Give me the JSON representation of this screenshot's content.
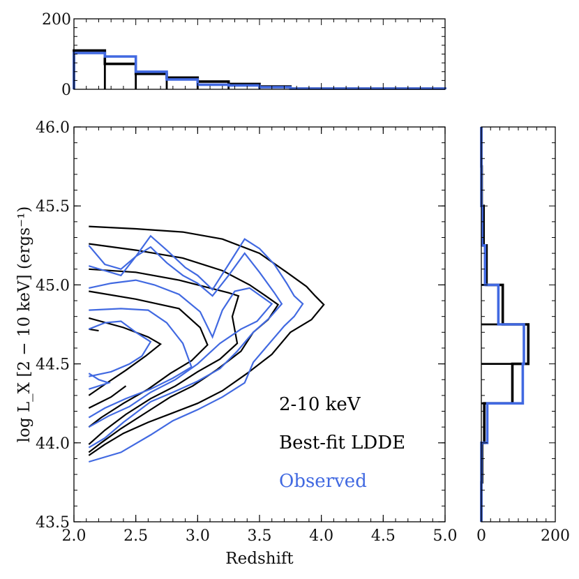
{
  "colors": {
    "model": "#000000",
    "observed": "#4169e1"
  },
  "chart_data": [
    {
      "panel": "main",
      "type": "contour",
      "xlabel": "Redshift",
      "ylabel": "log L_X [2 − 10 keV] (ergs⁻¹)",
      "xlim": [
        2.0,
        5.0
      ],
      "ylim": [
        43.5,
        46.0
      ],
      "xticks": [
        "2.0",
        "2.5",
        "3.0",
        "3.5",
        "4.0",
        "4.5",
        "5.0"
      ],
      "yticks": [
        "43.5",
        "44.0",
        "44.5",
        "45.0",
        "45.5",
        "46.0"
      ],
      "legend": {
        "placement": "lower-right",
        "entries": [
          "2-10 keV",
          "Best-fit LDDE",
          "Observed"
        ]
      },
      "series": [
        {
          "name": "Best-fit LDDE",
          "color": "#000000",
          "contours": [
            [
              [
                2.12,
                45.37
              ],
              [
                2.5,
                45.355
              ],
              [
                2.88,
                45.335
              ],
              [
                3.2,
                45.29
              ],
              [
                3.5,
                45.2
              ],
              [
                3.72,
                45.08
              ],
              [
                3.88,
                44.99
              ],
              [
                3.95,
                44.93
              ],
              [
                4.02,
                44.875
              ],
              [
                3.92,
                44.78
              ],
              [
                3.75,
                44.7
              ],
              [
                3.6,
                44.56
              ],
              [
                3.4,
                44.44
              ],
              [
                3.2,
                44.33
              ],
              [
                3.0,
                44.25
              ],
              [
                2.8,
                44.19
              ],
              [
                2.6,
                44.13
              ],
              [
                2.4,
                44.06
              ],
              [
                2.25,
                43.99
              ],
              [
                2.12,
                43.92
              ]
            ],
            [
              [
                2.12,
                45.26
              ],
              [
                2.5,
                45.22
              ],
              [
                2.88,
                45.17
              ],
              [
                3.2,
                45.09
              ],
              [
                3.42,
                45.0
              ],
              [
                3.55,
                44.93
              ],
              [
                3.65,
                44.875
              ],
              [
                3.57,
                44.78
              ],
              [
                3.45,
                44.7
              ],
              [
                3.35,
                44.58
              ],
              [
                3.15,
                44.46
              ],
              [
                2.96,
                44.36
              ],
              [
                2.78,
                44.29
              ],
              [
                2.6,
                44.2
              ],
              [
                2.38,
                44.09
              ],
              [
                2.22,
                44.0
              ],
              [
                2.12,
                43.94
              ]
            ],
            [
              [
                2.12,
                45.1
              ],
              [
                2.5,
                45.08
              ],
              [
                2.85,
                45.03
              ],
              [
                3.1,
                44.98
              ],
              [
                3.25,
                44.95
              ],
              [
                3.33,
                44.93
              ],
              [
                3.28,
                44.8
              ],
              [
                3.32,
                44.63
              ],
              [
                3.18,
                44.53
              ],
              [
                3.0,
                44.45
              ],
              [
                2.82,
                44.36
              ],
              [
                2.62,
                44.28
              ],
              [
                2.42,
                44.18
              ],
              [
                2.25,
                44.08
              ],
              [
                2.12,
                43.99
              ]
            ],
            [
              [
                2.12,
                44.96
              ],
              [
                2.5,
                44.91
              ],
              [
                2.85,
                44.85
              ],
              [
                3.02,
                44.73
              ],
              [
                3.08,
                44.62
              ],
              [
                2.95,
                44.52
              ],
              [
                2.78,
                44.44
              ],
              [
                2.6,
                44.34
              ],
              [
                2.4,
                44.25
              ],
              [
                2.22,
                44.16
              ],
              [
                2.12,
                44.1
              ]
            ],
            [
              [
                2.12,
                44.79
              ],
              [
                2.4,
                44.73
              ],
              [
                2.6,
                44.67
              ],
              [
                2.7,
                44.625
              ],
              [
                2.58,
                44.55
              ],
              [
                2.42,
                44.46
              ],
              [
                2.25,
                44.37
              ],
              [
                2.12,
                44.3
              ]
            ],
            [
              [
                2.12,
                44.72
              ],
              [
                2.2,
                44.71
              ]
            ],
            [
              [
                2.12,
                44.22
              ],
              [
                2.3,
                44.29
              ],
              [
                2.42,
                44.36
              ]
            ]
          ]
        },
        {
          "name": "Observed",
          "color": "#4169e1",
          "contours": [
            [
              [
                2.12,
                45.25
              ],
              [
                2.25,
                45.13
              ],
              [
                2.38,
                45.1
              ],
              [
                2.5,
                45.18
              ],
              [
                2.62,
                45.31
              ],
              [
                2.75,
                45.22
              ],
              [
                2.9,
                45.11
              ],
              [
                3.0,
                45.06
              ],
              [
                3.12,
                44.97
              ],
              [
                3.25,
                45.13
              ],
              [
                3.38,
                45.29
              ],
              [
                3.5,
                45.23
              ],
              [
                3.62,
                45.13
              ],
              [
                3.72,
                45.01
              ],
              [
                3.78,
                44.93
              ],
              [
                3.85,
                44.88
              ],
              [
                3.78,
                44.8
              ],
              [
                3.7,
                44.74
              ],
              [
                3.58,
                44.63
              ],
              [
                3.45,
                44.51
              ],
              [
                3.38,
                44.38
              ],
              [
                3.2,
                44.29
              ],
              [
                3.0,
                44.21
              ],
              [
                2.8,
                44.14
              ],
              [
                2.62,
                44.05
              ],
              [
                2.38,
                43.94
              ],
              [
                2.12,
                43.88
              ]
            ],
            [
              [
                2.12,
                45.12
              ],
              [
                2.25,
                45.09
              ],
              [
                2.38,
                45.06
              ],
              [
                2.5,
                45.18
              ],
              [
                2.62,
                45.24
              ],
              [
                2.75,
                45.14
              ],
              [
                2.88,
                45.06
              ],
              [
                3.0,
                45.01
              ],
              [
                3.12,
                44.93
              ],
              [
                3.25,
                45.06
              ],
              [
                3.38,
                45.2
              ],
              [
                3.5,
                45.08
              ],
              [
                3.62,
                44.95
              ],
              [
                3.68,
                44.88
              ],
              [
                3.58,
                44.79
              ],
              [
                3.45,
                44.7
              ],
              [
                3.32,
                44.58
              ],
              [
                3.18,
                44.47
              ],
              [
                3.0,
                44.39
              ],
              [
                2.8,
                44.32
              ],
              [
                2.62,
                44.26
              ],
              [
                2.4,
                44.13
              ],
              [
                2.25,
                44.03
              ],
              [
                2.12,
                43.97
              ]
            ],
            [
              [
                2.12,
                44.98
              ],
              [
                2.3,
                45.01
              ],
              [
                2.5,
                45.03
              ],
              [
                2.65,
                45.0
              ],
              [
                2.85,
                44.94
              ],
              [
                3.02,
                44.83
              ],
              [
                3.12,
                44.67
              ],
              [
                3.2,
                44.84
              ],
              [
                3.3,
                44.96
              ],
              [
                3.42,
                44.98
              ],
              [
                3.6,
                44.88
              ],
              [
                3.48,
                44.77
              ],
              [
                3.35,
                44.72
              ],
              [
                3.18,
                44.63
              ],
              [
                3.0,
                44.5
              ],
              [
                2.82,
                44.4
              ],
              [
                2.62,
                44.32
              ],
              [
                2.45,
                44.23
              ],
              [
                2.28,
                44.17
              ],
              [
                2.12,
                44.1
              ]
            ],
            [
              [
                2.12,
                44.84
              ],
              [
                2.38,
                44.85
              ],
              [
                2.6,
                44.84
              ],
              [
                2.75,
                44.76
              ],
              [
                2.88,
                44.63
              ],
              [
                2.95,
                44.48
              ],
              [
                2.8,
                44.41
              ],
              [
                2.62,
                44.34
              ],
              [
                2.42,
                44.28
              ],
              [
                2.25,
                44.22
              ],
              [
                2.12,
                44.16
              ]
            ],
            [
              [
                2.12,
                44.72
              ],
              [
                2.25,
                44.76
              ],
              [
                2.38,
                44.77
              ],
              [
                2.5,
                44.7
              ],
              [
                2.62,
                44.64
              ],
              [
                2.55,
                44.55
              ],
              [
                2.45,
                44.5
              ],
              [
                2.3,
                44.45
              ],
              [
                2.12,
                44.42
              ]
            ],
            [
              [
                2.12,
                44.44
              ],
              [
                2.2,
                44.4
              ],
              [
                2.28,
                44.38
              ],
              [
                2.2,
                44.36
              ],
              [
                2.12,
                44.34
              ]
            ]
          ]
        }
      ]
    },
    {
      "panel": "top",
      "type": "histogram",
      "xlim": [
        2.0,
        5.0
      ],
      "ylim": [
        0,
        200
      ],
      "yticks": [
        "0",
        "200"
      ],
      "bin_edges": [
        2.0,
        2.25,
        2.5,
        2.75,
        3.0,
        3.25,
        3.5,
        3.75,
        5.0
      ],
      "series": [
        {
          "name": "Best-fit LDDE",
          "color": "#000000",
          "values": [
            110,
            72,
            44,
            33,
            22,
            15,
            8,
            2
          ]
        },
        {
          "name": "Observed",
          "color": "#4169e1",
          "values": [
            103,
            93,
            50,
            28,
            13,
            11,
            6,
            2
          ]
        }
      ]
    },
    {
      "panel": "right",
      "type": "histogram",
      "orientation": "horizontal",
      "xlim": [
        0,
        200
      ],
      "ylim": [
        43.5,
        46.0
      ],
      "xticks": [
        "0",
        "200"
      ],
      "bin_edges": [
        43.5,
        43.75,
        44.0,
        44.25,
        44.5,
        44.75,
        45.0,
        45.25,
        45.5,
        45.75,
        46.0
      ],
      "series": [
        {
          "name": "Best-fit LDDE",
          "color": "#000000",
          "values": [
            0,
            2,
            8,
            84,
            127,
            58,
            14,
            6,
            1,
            0
          ]
        },
        {
          "name": "Observed",
          "color": "#4169e1",
          "values": [
            0,
            0,
            16,
            112,
            115,
            46,
            10,
            2,
            0,
            0
          ]
        }
      ]
    }
  ]
}
